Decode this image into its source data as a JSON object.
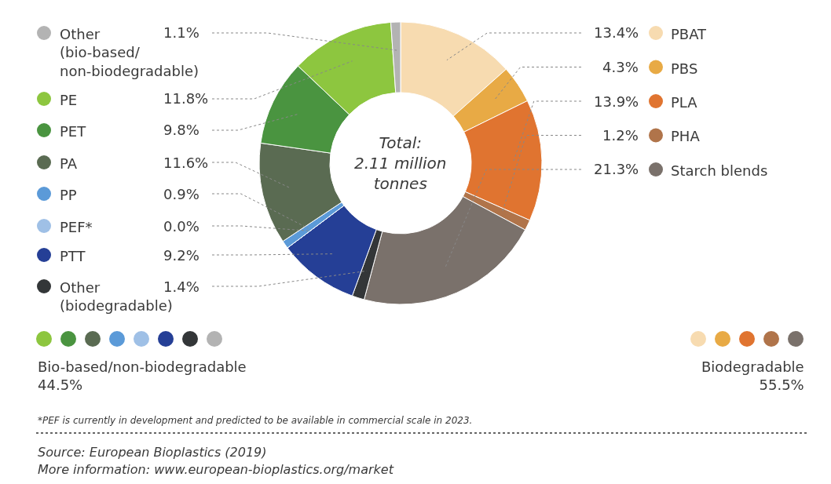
{
  "chart_data": {
    "type": "donut",
    "categories": [
      "PBAT",
      "PBS",
      "PLA",
      "PHA",
      "Starch blends",
      "Other\n(biodegradable)",
      "PTT",
      "PEF*",
      "PP",
      "PA",
      "PET",
      "PE",
      "Other\n(bio-based/\nnon-biodegradable)"
    ],
    "values": [
      13.4,
      4.3,
      13.9,
      1.2,
      21.3,
      1.4,
      9.2,
      0.0,
      0.9,
      11.6,
      9.8,
      11.8,
      1.1
    ],
    "value_labels": [
      "13.4%",
      "4.3%",
      "13.9%",
      "1.2%",
      "21.3%",
      "1.4%",
      "9.2%",
      "0.0%",
      "0.9%",
      "11.6%",
      "9.8%",
      "11.8%",
      "1.1%"
    ],
    "colors": [
      "#f7dbb0",
      "#e8aa45",
      "#e07430",
      "#b0744a",
      "#7a716b",
      "#333638",
      "#253f96",
      "#9fc0e6",
      "#5b9ad8",
      "#5a6b52",
      "#4a9440",
      "#8dc63f",
      "#b3b3b3"
    ],
    "legend": "left",
    "annotations": [
      "Total:\n2.11 million\ntonnes",
      "Bio-based/non-biodegradable\n44.5%",
      "Biodegradable\n55.5%",
      "*PEF is currently in development and predicted to be available in commercial scale in 2023.",
      "Source: European Bioplastics (2019)",
      "More information: www.european-bioplastics.org/market"
    ]
  }
}
